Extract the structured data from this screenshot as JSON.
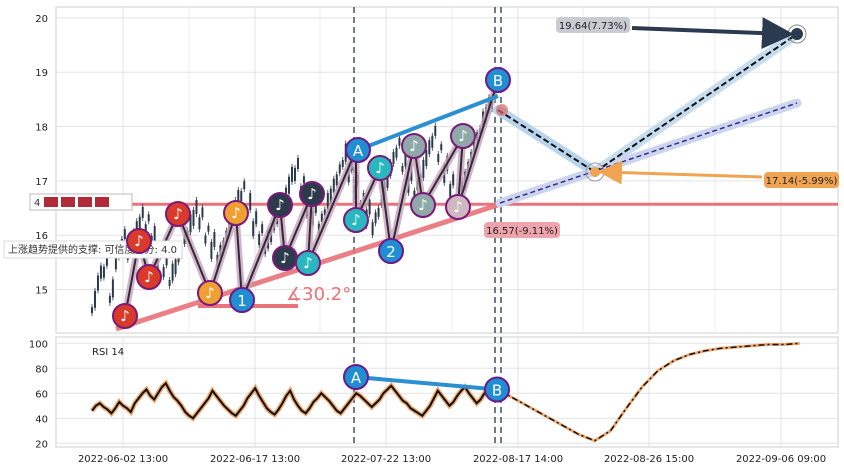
{
  "chart_data": [
    {
      "type": "candlestick",
      "panel": "price",
      "x_tick_labels": [
        "2022-06-02 13:00",
        "2022-06-17 13:00",
        "2022-07-22 13:00",
        "2022-08-17 14:00",
        "2022-08-26 15:00",
        "2022-09-06 09:00"
      ],
      "y_ticks": [
        15,
        16,
        17,
        18,
        19,
        20
      ],
      "ylim": [
        14.2,
        20.2
      ],
      "grid": true,
      "ohlc_approx": [
        14.7,
        15.2,
        15.4,
        14.9,
        15.6,
        15.9,
        15.7,
        16.0,
        16.3,
        16.2,
        15.9,
        15.6,
        15.4,
        15.2,
        15.5,
        15.8,
        16.1,
        16.4,
        16.3,
        16.0,
        15.8,
        15.6,
        15.9,
        16.3,
        16.6,
        16.8,
        16.5,
        16.2,
        16.0,
        15.8,
        16.1,
        16.4,
        16.7,
        17.0,
        17.2,
        16.9,
        16.6,
        16.4,
        16.2,
        16.5,
        16.8,
        17.1,
        17.4,
        17.2,
        16.9,
        16.6,
        16.4,
        16.2,
        16.5,
        16.9,
        17.3,
        17.6,
        17.3,
        17.0,
        16.8,
        17.1,
        17.5,
        17.8,
        17.5,
        17.2,
        16.9,
        16.7,
        16.9,
        17.3,
        17.7,
        18.0,
        18.3,
        18.5
      ],
      "pattern_points": [
        "A",
        "B",
        "1",
        "2"
      ],
      "wave_numbers": [
        "1",
        "2"
      ],
      "annotations": {
        "target_up": "19.64(7.73%)",
        "target_mid": "17.14(-5.99%)",
        "target_down": "16.57(-9.11%)",
        "support_label": "上涨趋势提供的支撑: 可信度评分: 4.0",
        "angle": "∡30.2°",
        "support_score": "4"
      },
      "horizontal_support": 16.57,
      "projection": {
        "from": 18.3,
        "pivot": 17.14,
        "up_target": 19.64,
        "mid_target": 18.4
      },
      "colors": {
        "candle": "#2a3a4a",
        "support_line": "#e8737a",
        "up_arrow": "#2b3a4e",
        "projection_band": "#b8d4ec",
        "orange_arrow": "#f0a452",
        "ab_line": "#2b8fd1"
      }
    },
    {
      "type": "line",
      "panel": "rsi",
      "title": "RSI 14",
      "y_ticks": [
        20,
        40,
        60,
        80,
        100
      ],
      "ylim": [
        17,
        105
      ],
      "values": [
        46,
        50,
        52,
        49,
        47,
        44,
        48,
        53,
        50,
        48,
        45,
        52,
        56,
        60,
        63,
        58,
        55,
        60,
        65,
        68,
        62,
        57,
        54,
        50,
        45,
        42,
        40,
        44,
        48,
        52,
        56,
        62,
        58,
        54,
        50,
        47,
        44,
        42,
        46,
        50,
        56,
        60,
        64,
        58,
        53,
        48,
        45,
        43,
        47,
        52,
        58,
        62,
        55,
        50,
        46,
        44,
        48,
        53,
        56,
        60,
        57,
        54,
        50,
        46,
        44,
        48,
        52,
        56,
        60,
        58,
        55,
        52,
        49,
        52,
        55,
        60,
        63,
        66,
        62,
        58,
        54,
        52,
        48,
        46,
        44,
        42,
        46,
        50,
        56,
        62,
        58,
        54,
        50,
        53,
        58,
        62,
        65,
        60,
        56,
        52,
        55,
        60,
        63,
        60,
        57,
        62
      ],
      "projection_values": [
        62,
        55,
        48,
        41,
        34,
        27,
        22,
        30,
        48,
        65,
        78,
        86,
        91,
        94,
        96,
        97,
        98,
        99,
        99,
        100
      ],
      "pattern_points": [
        "A",
        "B"
      ],
      "divergence_values": [
        73,
        63
      ]
    }
  ]
}
